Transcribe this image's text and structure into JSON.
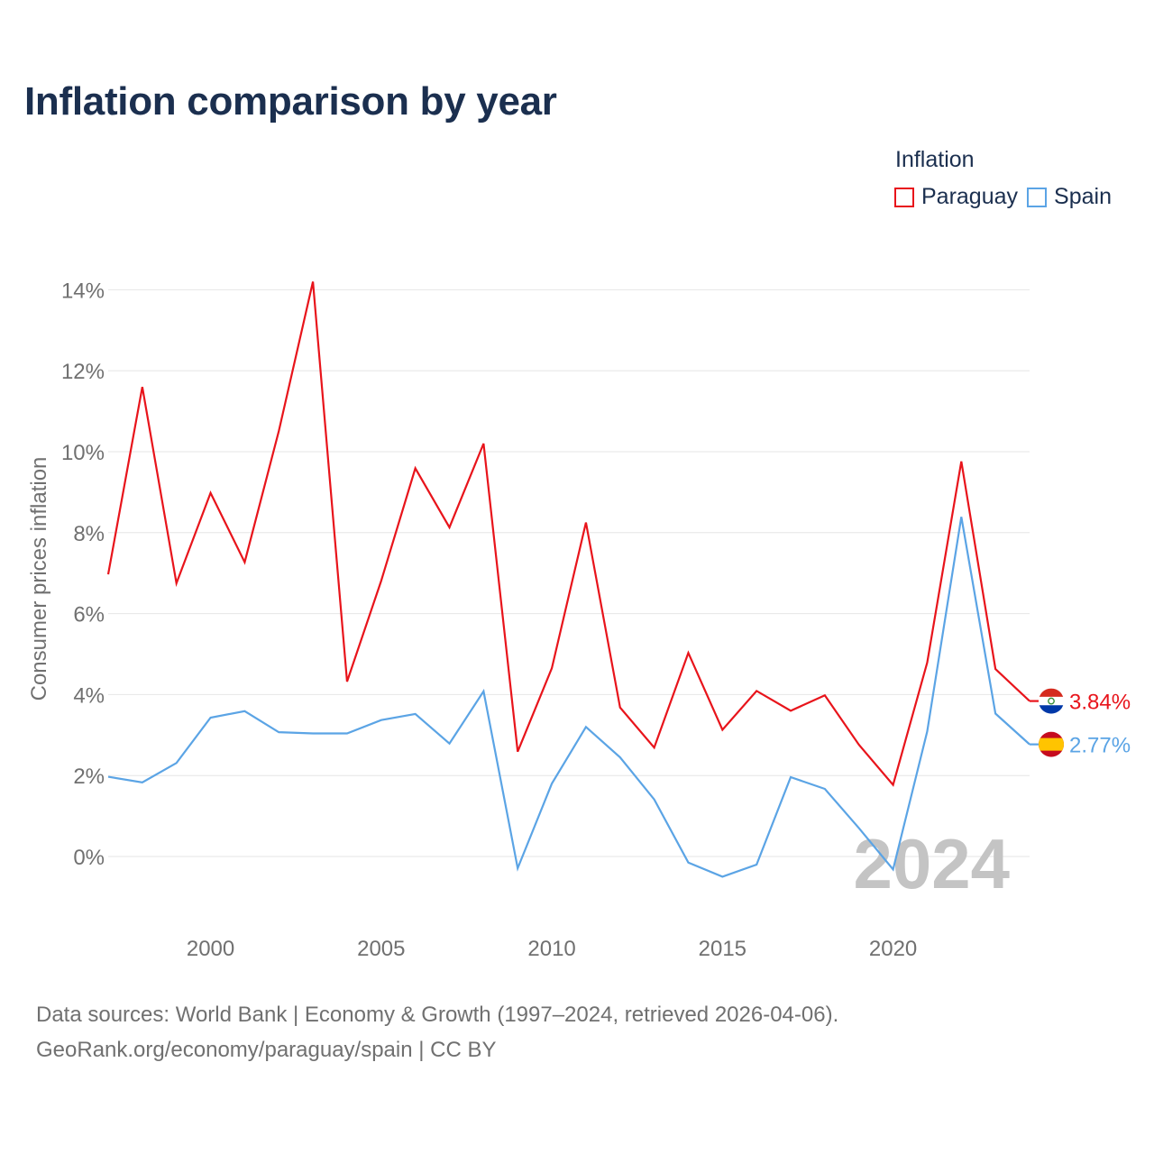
{
  "title": "Inflation comparison by year",
  "legend": {
    "title": "Inflation",
    "items": [
      {
        "label": "Paraguay",
        "color": "#e8141b"
      },
      {
        "label": "Spain",
        "color": "#5ba4e5"
      }
    ]
  },
  "chart_data": {
    "type": "line",
    "title": "Inflation comparison by year",
    "xlabel": "",
    "ylabel": "Consumer prices inflation",
    "x": [
      1997,
      1998,
      1999,
      2000,
      2001,
      2002,
      2003,
      2004,
      2005,
      2006,
      2007,
      2008,
      2009,
      2010,
      2011,
      2012,
      2013,
      2014,
      2015,
      2016,
      2017,
      2018,
      2019,
      2020,
      2021,
      2022,
      2023,
      2024
    ],
    "xticks": [
      2000,
      2005,
      2010,
      2015,
      2020
    ],
    "xtick_labels": [
      "2000",
      "2005",
      "2010",
      "2015",
      "2020"
    ],
    "yticks": [
      0,
      2,
      4,
      6,
      8,
      10,
      12,
      14
    ],
    "ytick_labels": [
      "0%",
      "2%",
      "4%",
      "6%",
      "8%",
      "10%",
      "12%",
      "14%"
    ],
    "xlim": [
      1997,
      2024
    ],
    "ylim": [
      -1.5,
      14.5
    ],
    "grid": true,
    "legend_position": "top-right",
    "watermark_year": "2024",
    "series": [
      {
        "name": "Paraguay",
        "color": "#e8141b",
        "end_label": "3.84%",
        "values": [
          6.97,
          11.6,
          6.75,
          8.98,
          7.27,
          10.51,
          14.2,
          4.32,
          6.81,
          9.59,
          8.13,
          10.2,
          2.59,
          4.65,
          8.25,
          3.68,
          2.69,
          5.03,
          3.13,
          4.09,
          3.6,
          3.98,
          2.76,
          1.77,
          4.79,
          9.76,
          4.63,
          3.84
        ]
      },
      {
        "name": "Spain",
        "color": "#5ba4e5",
        "end_label": "2.77%",
        "values": [
          1.97,
          1.83,
          2.31,
          3.43,
          3.59,
          3.07,
          3.04,
          3.04,
          3.37,
          3.52,
          2.79,
          4.08,
          -0.29,
          1.8,
          3.2,
          2.45,
          1.41,
          -0.15,
          -0.5,
          -0.2,
          1.96,
          1.67,
          0.7,
          -0.32,
          3.09,
          8.39,
          3.53,
          2.77
        ]
      }
    ]
  },
  "source": {
    "line1": "Data sources: World Bank | Economy & Growth (1997–2024, retrieved 2026-04-06).",
    "line2": "GeoRank.org/economy/paraguay/spain | CC BY"
  }
}
